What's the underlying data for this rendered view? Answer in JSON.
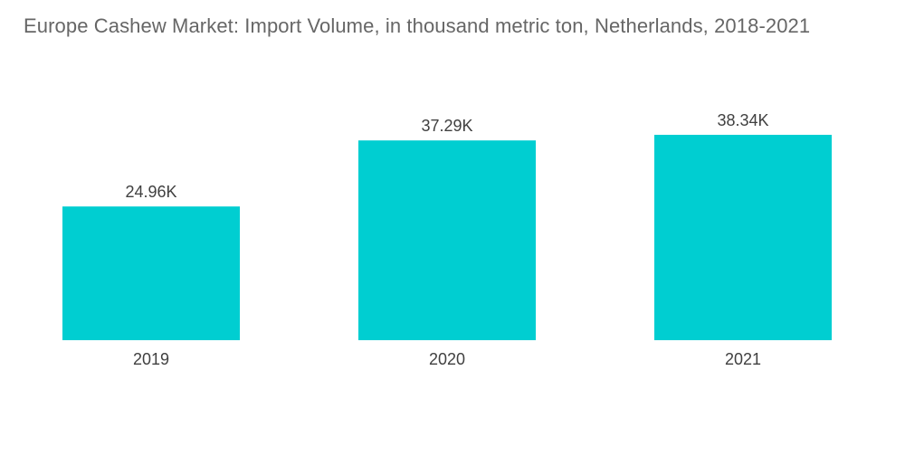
{
  "chart_data": {
    "type": "bar",
    "title": "Europe Cashew Market: Import Volume, in thousand metric ton, Netherlands, 2018-2021",
    "categories": [
      "2019",
      "2020",
      "2021"
    ],
    "values": [
      24.96,
      37.29,
      38.34
    ],
    "data_labels": [
      "24.96K",
      "37.29K",
      "38.34K"
    ],
    "xlabel": "",
    "ylabel": "",
    "ylim": [
      0,
      38.34
    ],
    "grid": false,
    "legend": "none",
    "bar_color": "#00ced1"
  }
}
